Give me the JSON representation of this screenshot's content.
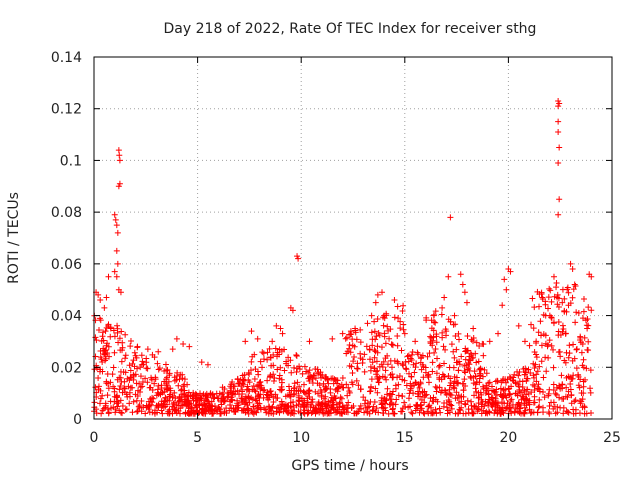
{
  "chart_data": {
    "type": "scatter",
    "title": "Day 218 of 2022, Rate Of TEC Index for receiver sthg",
    "xlabel": "GPS time / hours",
    "ylabel": "ROTI / TECUs",
    "xlim": [
      0,
      25
    ],
    "ylim": [
      0,
      0.14
    ],
    "xticks": [
      "0",
      "5",
      "10",
      "15",
      "20",
      "25"
    ],
    "yticks": [
      "0",
      "0.02",
      "0.04",
      "0.06",
      "0.08",
      "0.1",
      "0.12",
      "0.14"
    ],
    "grid": true,
    "marker": "+",
    "color": "#ff0000",
    "series": [
      {
        "name": "ROTI",
        "points": [
          [
            0.1,
            0.049
          ],
          [
            0.2,
            0.048
          ],
          [
            0.3,
            0.046
          ],
          [
            0.5,
            0.043
          ],
          [
            0.6,
            0.047
          ],
          [
            0.7,
            0.055
          ],
          [
            1.0,
            0.079
          ],
          [
            1.05,
            0.077
          ],
          [
            1.1,
            0.075
          ],
          [
            1.15,
            0.072
          ],
          [
            1.2,
            0.104
          ],
          [
            1.22,
            0.102
          ],
          [
            1.25,
            0.1
          ],
          [
            1.2,
            0.09
          ],
          [
            1.25,
            0.091
          ],
          [
            1.1,
            0.065
          ],
          [
            1.15,
            0.06
          ],
          [
            1.0,
            0.057
          ],
          [
            1.1,
            0.055
          ],
          [
            1.2,
            0.05
          ],
          [
            1.3,
            0.049
          ],
          [
            2.1,
            0.028
          ],
          [
            2.6,
            0.027
          ],
          [
            3.1,
            0.026
          ],
          [
            3.8,
            0.027
          ],
          [
            4.0,
            0.031
          ],
          [
            4.3,
            0.029
          ],
          [
            4.6,
            0.028
          ],
          [
            5.2,
            0.022
          ],
          [
            5.5,
            0.021
          ],
          [
            7.3,
            0.03
          ],
          [
            7.6,
            0.034
          ],
          [
            7.9,
            0.031
          ],
          [
            8.6,
            0.03
          ],
          [
            8.8,
            0.036
          ],
          [
            9.0,
            0.035
          ],
          [
            9.1,
            0.033
          ],
          [
            9.5,
            0.043
          ],
          [
            9.6,
            0.042
          ],
          [
            9.8,
            0.063
          ],
          [
            9.85,
            0.062
          ],
          [
            10.4,
            0.03
          ],
          [
            11.5,
            0.031
          ],
          [
            12.0,
            0.033
          ],
          [
            12.4,
            0.034
          ],
          [
            12.6,
            0.035
          ],
          [
            13.2,
            0.037
          ],
          [
            13.4,
            0.04
          ],
          [
            13.6,
            0.045
          ],
          [
            13.7,
            0.048
          ],
          [
            13.9,
            0.049
          ],
          [
            14.0,
            0.04
          ],
          [
            14.5,
            0.046
          ],
          [
            15.0,
            0.033
          ],
          [
            15.5,
            0.03
          ],
          [
            16.4,
            0.04
          ],
          [
            16.8,
            0.043
          ],
          [
            16.9,
            0.047
          ],
          [
            17.2,
            0.078
          ],
          [
            17.1,
            0.055
          ],
          [
            17.4,
            0.04
          ],
          [
            17.7,
            0.056
          ],
          [
            17.8,
            0.052
          ],
          [
            17.9,
            0.049
          ],
          [
            18.0,
            0.045
          ],
          [
            18.3,
            0.035
          ],
          [
            19.1,
            0.03
          ],
          [
            19.5,
            0.033
          ],
          [
            19.7,
            0.044
          ],
          [
            19.8,
            0.054
          ],
          [
            19.9,
            0.05
          ],
          [
            20.0,
            0.058
          ],
          [
            20.1,
            0.057
          ],
          [
            20.5,
            0.036
          ],
          [
            20.8,
            0.03
          ],
          [
            21.8,
            0.04
          ],
          [
            22.0,
            0.04
          ],
          [
            22.2,
            0.055
          ],
          [
            22.3,
            0.051
          ],
          [
            22.35,
            0.047
          ],
          [
            22.4,
            0.123
          ],
          [
            22.45,
            0.122
          ],
          [
            22.4,
            0.121
          ],
          [
            22.4,
            0.115
          ],
          [
            22.4,
            0.111
          ],
          [
            22.45,
            0.105
          ],
          [
            22.4,
            0.099
          ],
          [
            22.45,
            0.085
          ],
          [
            22.4,
            0.079
          ],
          [
            22.6,
            0.045
          ],
          [
            22.9,
            0.044
          ],
          [
            23.0,
            0.06
          ],
          [
            23.1,
            0.058
          ],
          [
            23.2,
            0.052
          ],
          [
            23.4,
            0.041
          ],
          [
            23.6,
            0.039
          ],
          [
            23.8,
            0.035
          ],
          [
            23.9,
            0.056
          ],
          [
            24.0,
            0.055
          ]
        ]
      }
    ]
  }
}
